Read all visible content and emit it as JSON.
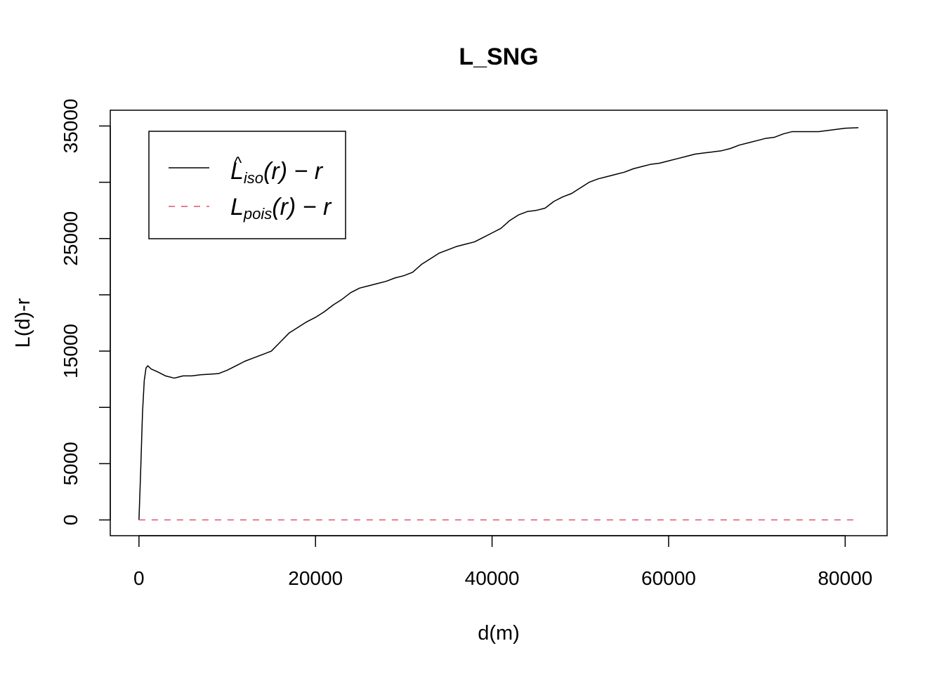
{
  "chart_data": {
    "type": "line",
    "title": "L_SNG",
    "xlabel": "d(m)",
    "ylabel": "L(d)-r",
    "xlim": [
      -3250,
      84750
    ],
    "ylim": [
      -1400,
      36400
    ],
    "x_ticks": [
      "0",
      "20000",
      "40000",
      "60000",
      "80000"
    ],
    "x_tick_values": [
      0,
      20000,
      40000,
      60000,
      80000
    ],
    "y_ticks": [
      "0",
      "5000",
      "15000",
      "25000",
      "35000"
    ],
    "y_tick_values": [
      0,
      5000,
      15000,
      25000,
      35000
    ],
    "y_minor_tick_values": [
      10000,
      20000,
      30000
    ],
    "grid": false,
    "legend_position": "top-left",
    "colors": {
      "observed": "#000000",
      "theoretical": "#df536b",
      "axis": "#000000"
    },
    "series": [
      {
        "name": "L̂iso(r) − r",
        "legend_main": "L",
        "legend_hat": "^",
        "legend_sub": "iso",
        "legend_tail": "(r) − r",
        "style": "solid",
        "x": [
          0,
          200,
          400,
          600,
          800,
          1000,
          1400,
          2000,
          3000,
          4000,
          5000,
          6000,
          7000,
          8000,
          9000,
          10000,
          11000,
          12000,
          13000,
          14000,
          15000,
          16000,
          17000,
          18000,
          19000,
          20000,
          21000,
          22000,
          23000,
          24000,
          25000,
          26000,
          27000,
          28000,
          29000,
          30000,
          31000,
          32000,
          33000,
          34000,
          35000,
          36000,
          37000,
          38000,
          39000,
          40000,
          41000,
          42000,
          43000,
          44000,
          45000,
          46000,
          47000,
          48000,
          49000,
          50000,
          51000,
          52000,
          53000,
          54000,
          55000,
          56000,
          57000,
          58000,
          59000,
          60000,
          61000,
          62000,
          63000,
          64000,
          65000,
          66000,
          67000,
          68000,
          69000,
          70000,
          71000,
          72000,
          73000,
          74000,
          75000,
          76000,
          77000,
          78000,
          79000,
          80000,
          81500
        ],
        "y": [
          0,
          4500,
          9500,
          12400,
          13500,
          13700,
          13400,
          13200,
          12800,
          12600,
          12800,
          12800,
          12900,
          12950,
          13000,
          13300,
          13700,
          14100,
          14400,
          14700,
          15000,
          15800,
          16600,
          17100,
          17600,
          18000,
          18500,
          19100,
          19600,
          20200,
          20600,
          20800,
          21000,
          21200,
          21500,
          21700,
          22000,
          22700,
          23200,
          23700,
          24000,
          24300,
          24500,
          24700,
          25100,
          25500,
          25900,
          26600,
          27100,
          27400,
          27500,
          27700,
          28300,
          28700,
          29000,
          29500,
          30000,
          30300,
          30500,
          30700,
          30900,
          31200,
          31400,
          31600,
          31700,
          31900,
          32100,
          32300,
          32500,
          32600,
          32700,
          32800,
          33000,
          33300,
          33500,
          33700,
          33900,
          34000,
          34300,
          34500,
          34500,
          34500,
          34500,
          34600,
          34700,
          34800,
          34850
        ]
      },
      {
        "name": "Lpois(r) − r",
        "legend_main": "L",
        "legend_sub": "pois",
        "legend_tail": "(r) − r",
        "style": "dashed",
        "x": [
          0,
          81500
        ],
        "y": [
          0,
          0
        ]
      }
    ]
  }
}
